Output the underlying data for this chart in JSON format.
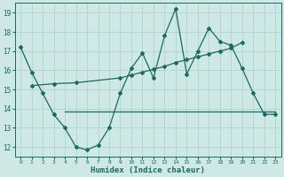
{
  "xlabel": "Humidex (Indice chaleur)",
  "bg_color": "#cde8e5",
  "line_color": "#1a6b5e",
  "grid_color": "#aed4d0",
  "xlim": [
    -0.5,
    23.5
  ],
  "ylim": [
    11.5,
    19.5
  ],
  "yticks": [
    12,
    13,
    14,
    15,
    16,
    17,
    18,
    19
  ],
  "xticks": [
    0,
    1,
    2,
    3,
    4,
    5,
    6,
    7,
    8,
    9,
    10,
    11,
    12,
    13,
    14,
    15,
    16,
    17,
    18,
    19,
    20,
    21,
    22,
    23
  ],
  "series1_x": [
    0,
    1,
    2,
    3,
    4,
    5,
    6,
    7,
    8,
    9,
    10,
    11,
    12,
    13,
    14,
    15,
    16,
    17,
    18,
    19,
    20,
    21,
    22,
    23
  ],
  "series1_y": [
    17.2,
    15.9,
    14.8,
    13.7,
    13.0,
    12.0,
    11.85,
    12.1,
    13.0,
    14.8,
    16.1,
    16.9,
    15.6,
    17.8,
    19.2,
    15.8,
    17.0,
    18.2,
    17.5,
    17.3,
    16.1,
    14.8,
    13.7,
    13.7
  ],
  "series2_x": [
    1,
    3,
    5,
    9,
    10,
    11,
    12,
    13,
    14,
    15,
    16,
    17,
    18,
    19,
    20
  ],
  "series2_y": [
    15.2,
    15.3,
    15.35,
    15.6,
    15.75,
    15.9,
    16.05,
    16.2,
    16.4,
    16.55,
    16.7,
    16.85,
    17.0,
    17.15,
    17.45
  ],
  "series3_x": [
    4,
    19,
    23
  ],
  "series3_y": [
    13.85,
    13.85,
    13.85
  ],
  "markersize": 2.0,
  "linewidth": 0.9
}
